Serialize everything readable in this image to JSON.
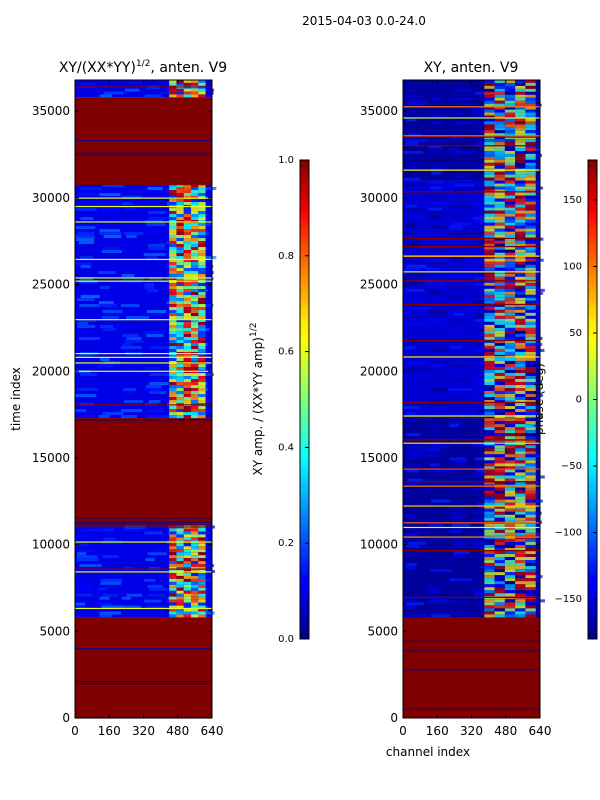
{
  "suptitle": "2015-04-03 0.0-24.0",
  "chart_data": [
    {
      "type": "heatmap",
      "title_main": "XY/(XX*YY)",
      "title_exp": "1/2",
      "title_rest": ", anten. V9",
      "xlabel": "",
      "ylabel": "time index",
      "xlim": [
        0,
        640
      ],
      "ylim": [
        0,
        36800
      ],
      "xticks": [
        0,
        160,
        320,
        480,
        640
      ],
      "yticks": [
        0,
        5000,
        10000,
        15000,
        20000,
        25000,
        30000,
        35000
      ],
      "colorbar": {
        "label_main": "XY amp. / (XX*YY amp)",
        "label_exp": "1/2",
        "range": [
          0.0,
          1.0
        ],
        "ticks": [
          0.0,
          0.2,
          0.4,
          0.6,
          0.8,
          1.0
        ],
        "tick_labels": [
          "0.0",
          "0.2",
          "0.4",
          "0.6",
          "0.8",
          "1.0"
        ]
      },
      "blocks": [
        {
          "t0": 0,
          "t1": 5800,
          "state": "saturated",
          "value": 1.0
        },
        {
          "t0": 5800,
          "t1": 11100,
          "state": "data",
          "value": 0.1
        },
        {
          "t0": 11100,
          "t1": 17300,
          "state": "saturated",
          "value": 1.0
        },
        {
          "t0": 17300,
          "t1": 30800,
          "state": "data",
          "value": 0.1
        },
        {
          "t0": 30800,
          "t1": 35800,
          "state": "saturated",
          "value": 1.0
        },
        {
          "t0": 35800,
          "t1": 36800,
          "state": "data",
          "value": 0.1
        }
      ],
      "active_channels": [
        440,
        610
      ]
    },
    {
      "type": "heatmap",
      "title": "XY, anten. V9",
      "xlabel": "channel index",
      "ylabel": "",
      "xlim": [
        0,
        640
      ],
      "ylim": [
        0,
        36800
      ],
      "xticks": [
        0,
        160,
        320,
        480,
        640
      ],
      "yticks": [
        0,
        5000,
        10000,
        15000,
        20000,
        25000,
        30000,
        35000
      ],
      "colorbar": {
        "label": "phase (deg)",
        "range": [
          -180,
          180
        ],
        "ticks": [
          -150,
          -100,
          -50,
          0,
          50,
          100,
          150
        ],
        "tick_labels": [
          "−150",
          "−100",
          "−50",
          "0",
          "50",
          "100",
          "150"
        ]
      },
      "blocks": [
        {
          "t0": 0,
          "t1": 5800,
          "state": "saturated",
          "value": 180
        },
        {
          "t0": 5800,
          "t1": 17300,
          "state": "data",
          "value": -170
        },
        {
          "t0": 17300,
          "t1": 31000,
          "state": "data",
          "value": -150
        },
        {
          "t0": 31000,
          "t1": 36800,
          "state": "data",
          "value": -170
        }
      ],
      "active_channels": [
        380,
        620
      ]
    }
  ]
}
